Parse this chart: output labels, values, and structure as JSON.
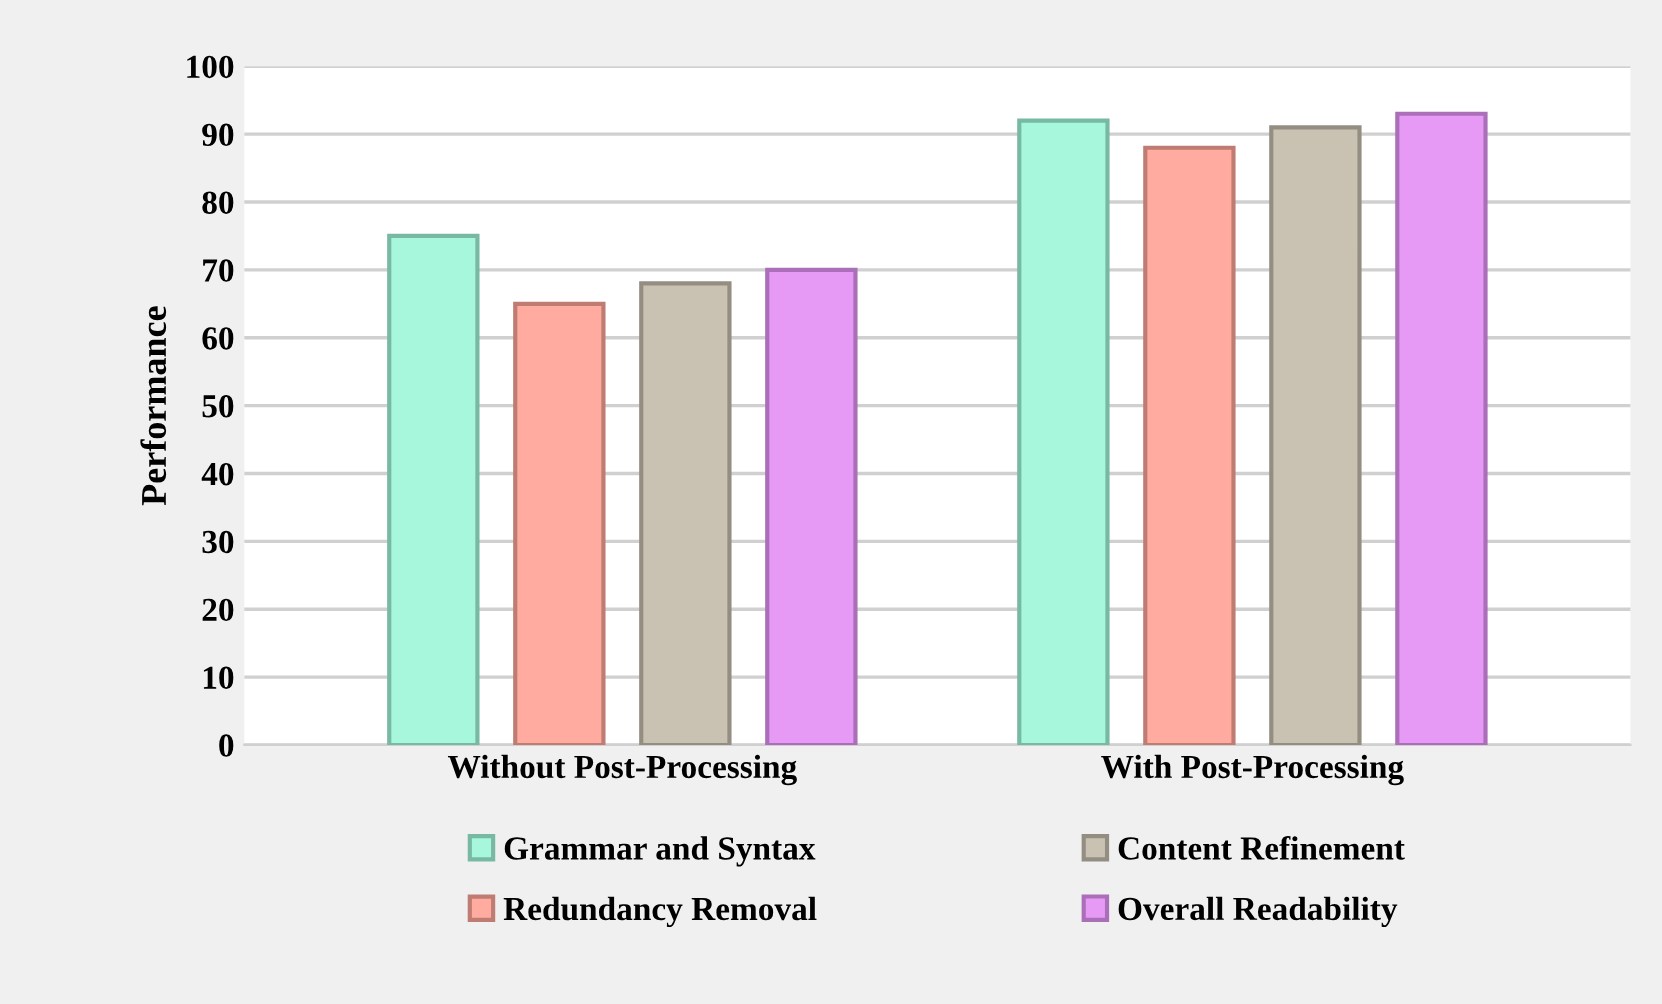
{
  "chart_data": {
    "type": "bar",
    "ylabel": "Performance",
    "categories": [
      "Without Post-Processing",
      "With Post-Processing"
    ],
    "series": [
      {
        "name": "Grammar and Syntax",
        "color": "#a6f7dc",
        "values": [
          75,
          92
        ]
      },
      {
        "name": "Redundancy Removal",
        "color": "#ffab9f",
        "values": [
          65,
          88
        ]
      },
      {
        "name": "Content Refinement",
        "color": "#c9c2b2",
        "values": [
          68,
          91
        ]
      },
      {
        "name": "Overall Readability",
        "color": "#e69af6",
        "values": [
          70,
          93
        ]
      }
    ],
    "ylim": [
      0,
      100
    ],
    "yticks": [
      0,
      10,
      20,
      30,
      40,
      50,
      60,
      70,
      80,
      90,
      100
    ],
    "grid": "y",
    "legend": "bottom"
  }
}
